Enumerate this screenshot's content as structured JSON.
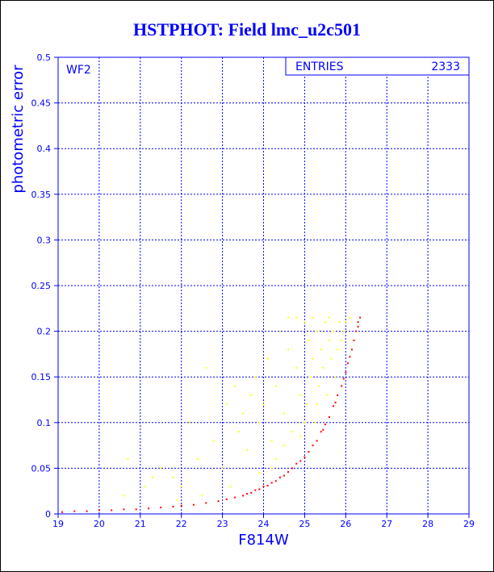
{
  "title": "HSTPHOT: Field lmc_u2c501",
  "chart_data": {
    "type": "scatter",
    "title": "HSTPHOT: Field lmc_u2c501",
    "xlabel": "F814W",
    "ylabel": "photometric error",
    "xlim": [
      19,
      29
    ],
    "ylim": [
      0,
      0.5
    ],
    "x_ticks": [
      19,
      20,
      21,
      22,
      23,
      24,
      25,
      26,
      27,
      28,
      29
    ],
    "y_ticks": [
      0,
      0.05,
      0.1,
      0.15,
      0.2,
      0.25,
      0.3,
      0.35,
      0.4,
      0.45,
      0.5
    ],
    "x_tick_labels": [
      "19",
      "20",
      "21",
      "22",
      "23",
      "24",
      "25",
      "26",
      "27",
      "28",
      "29"
    ],
    "y_tick_labels": [
      "0",
      "0.05",
      "0.1",
      "0.15",
      "0.2",
      "0.25",
      "0.3",
      "0.35",
      "0.4",
      "0.45",
      "0.5"
    ],
    "grid": true,
    "panel_label": "WF2",
    "stats_box": {
      "label": "ENTRIES",
      "value": "2333"
    },
    "colors": {
      "axis": "#0000ff",
      "primary": "#ff0000",
      "secondary": "#ffff00"
    },
    "series": [
      {
        "color": "#ff0000",
        "points": [
          [
            19.1,
            0.002
          ],
          [
            19.4,
            0.003
          ],
          [
            19.7,
            0.003
          ],
          [
            20.0,
            0.004
          ],
          [
            20.3,
            0.004
          ],
          [
            20.6,
            0.005
          ],
          [
            20.9,
            0.005
          ],
          [
            21.2,
            0.006
          ],
          [
            21.5,
            0.007
          ],
          [
            21.8,
            0.008
          ],
          [
            22.0,
            0.009
          ],
          [
            22.3,
            0.01
          ],
          [
            22.6,
            0.012
          ],
          [
            22.9,
            0.014
          ],
          [
            23.1,
            0.016
          ],
          [
            23.3,
            0.018
          ],
          [
            23.5,
            0.02
          ],
          [
            23.7,
            0.023
          ],
          [
            23.9,
            0.027
          ],
          [
            24.1,
            0.031
          ],
          [
            24.3,
            0.036
          ],
          [
            24.5,
            0.042
          ],
          [
            24.7,
            0.05
          ],
          [
            24.9,
            0.058
          ],
          [
            25.1,
            0.068
          ],
          [
            25.3,
            0.08
          ],
          [
            25.45,
            0.092
          ],
          [
            25.6,
            0.106
          ],
          [
            25.75,
            0.122
          ],
          [
            25.9,
            0.14
          ],
          [
            26.0,
            0.155
          ],
          [
            26.1,
            0.172
          ],
          [
            26.2,
            0.19
          ],
          [
            26.3,
            0.21
          ],
          [
            26.35,
            0.215
          ],
          [
            25.0,
            0.062
          ],
          [
            25.2,
            0.075
          ],
          [
            25.5,
            0.098
          ],
          [
            25.8,
            0.13
          ],
          [
            26.05,
            0.165
          ],
          [
            26.25,
            0.2
          ],
          [
            24.8,
            0.055
          ],
          [
            24.6,
            0.046
          ],
          [
            24.4,
            0.04
          ],
          [
            24.2,
            0.034
          ],
          [
            25.4,
            0.09
          ],
          [
            25.7,
            0.118
          ],
          [
            26.15,
            0.18
          ],
          [
            25.95,
            0.148
          ],
          [
            26.3,
            0.205
          ],
          [
            24.0,
            0.03
          ],
          [
            23.8,
            0.026
          ],
          [
            23.6,
            0.022
          ]
        ]
      },
      {
        "color": "#ffff00",
        "points": [
          [
            20.6,
            0.02
          ],
          [
            20.7,
            0.06
          ],
          [
            21.1,
            0.03
          ],
          [
            21.3,
            0.04
          ],
          [
            21.5,
            0.05
          ],
          [
            21.8,
            0.04
          ],
          [
            22.0,
            0.03
          ],
          [
            22.2,
            0.1
          ],
          [
            22.4,
            0.06
          ],
          [
            22.6,
            0.16
          ],
          [
            22.8,
            0.08
          ],
          [
            23.0,
            0.05
          ],
          [
            23.1,
            0.12
          ],
          [
            23.3,
            0.14
          ],
          [
            23.4,
            0.09
          ],
          [
            23.5,
            0.11
          ],
          [
            23.6,
            0.07
          ],
          [
            23.7,
            0.13
          ],
          [
            23.8,
            0.15
          ],
          [
            23.9,
            0.1
          ],
          [
            24.0,
            0.12
          ],
          [
            24.1,
            0.17
          ],
          [
            24.2,
            0.08
          ],
          [
            24.3,
            0.14
          ],
          [
            24.4,
            0.2
          ],
          [
            24.5,
            0.11
          ],
          [
            24.6,
            0.18
          ],
          [
            24.7,
            0.09
          ],
          [
            24.8,
            0.16
          ],
          [
            24.9,
            0.13
          ],
          [
            25.0,
            0.21
          ],
          [
            25.05,
            0.12
          ],
          [
            25.1,
            0.19
          ],
          [
            25.15,
            0.15
          ],
          [
            25.2,
            0.17
          ],
          [
            25.25,
            0.1
          ],
          [
            25.3,
            0.2
          ],
          [
            25.35,
            0.14
          ],
          [
            25.4,
            0.18
          ],
          [
            25.45,
            0.16
          ],
          [
            25.5,
            0.21
          ],
          [
            25.55,
            0.13
          ],
          [
            25.6,
            0.19
          ],
          [
            25.65,
            0.17
          ],
          [
            25.7,
            0.2
          ],
          [
            25.75,
            0.15
          ],
          [
            25.8,
            0.18
          ],
          [
            25.85,
            0.21
          ],
          [
            25.9,
            0.19
          ],
          [
            25.95,
            0.2
          ],
          [
            26.0,
            0.21
          ],
          [
            26.1,
            0.215
          ],
          [
            24.6,
            0.215
          ],
          [
            24.8,
            0.215
          ],
          [
            25.2,
            0.215
          ],
          [
            25.6,
            0.215
          ],
          [
            24.3,
            0.06
          ],
          [
            24.5,
            0.075
          ],
          [
            24.9,
            0.085
          ],
          [
            25.0,
            0.1
          ],
          [
            23.2,
            0.03
          ],
          [
            22.5,
            0.02
          ],
          [
            21.9,
            0.015
          ],
          [
            24.2,
            0.05
          ],
          [
            23.9,
            0.045
          ],
          [
            25.3,
            0.12
          ]
        ]
      }
    ]
  }
}
